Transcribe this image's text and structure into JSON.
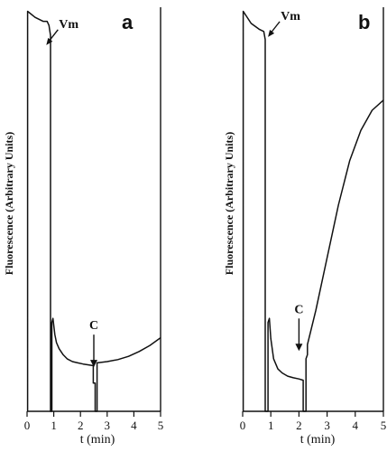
{
  "chart_data": [
    {
      "type": "line",
      "panel_label": "a",
      "xlabel": "t (min)",
      "ylabel": "Fluorescence (Arbitrary Units)",
      "x_ticks": [
        "0",
        "1",
        "2",
        "3",
        "4",
        "5"
      ],
      "xlim": [
        0,
        5
      ],
      "ylim": [
        0,
        100
      ],
      "grid": false,
      "annotations": [
        {
          "text": "Vm",
          "x": 0.72,
          "y": 94
        },
        {
          "text": "C",
          "x": 2.5,
          "y": 6
        }
      ],
      "series": [
        {
          "x": [
            0.02,
            0.02,
            0.3,
            0.6,
            0.75,
            0.82,
            0.88,
            0.88,
            0.93,
            0.93,
            0.97,
            1.04,
            1.1,
            1.2,
            1.35,
            1.5,
            1.7,
            1.9,
            2.1,
            2.3,
            2.48,
            2.48,
            2.55,
            2.55,
            2.62,
            2.62,
            3.0,
            3.4,
            3.8,
            4.2,
            4.6,
            5.0
          ],
          "y": [
            0,
            99,
            97.5,
            96.5,
            96.5,
            95.5,
            93,
            0,
            0,
            22,
            23,
            19,
            17,
            15.5,
            14,
            13,
            12.3,
            12,
            11.7,
            11.5,
            11.3,
            7,
            7,
            0,
            0,
            12,
            12.3,
            12.8,
            13.6,
            14.8,
            16.3,
            18.2
          ]
        }
      ]
    },
    {
      "type": "line",
      "panel_label": "b",
      "xlabel": "t (min)",
      "ylabel": "Fluorescence (Arbitrary Units)",
      "x_ticks": [
        "0",
        "1",
        "2",
        "3",
        "4",
        "5"
      ],
      "xlim": [
        0,
        5
      ],
      "ylim": [
        0,
        100
      ],
      "grid": false,
      "annotations": [
        {
          "text": "Vm",
          "x": 0.9,
          "y": 96
        },
        {
          "text": "C",
          "x": 2.0,
          "y": 10
        }
      ],
      "series": [
        {
          "x": [
            0.02,
            0.02,
            0.3,
            0.6,
            0.75,
            0.8,
            0.8,
            0.9,
            0.9,
            0.95,
            1.0,
            1.1,
            1.25,
            1.4,
            1.6,
            1.8,
            2.0,
            2.15,
            2.15,
            2.25,
            2.25,
            2.3,
            2.3,
            2.6,
            3.0,
            3.4,
            3.8,
            4.2,
            4.6,
            5.0
          ],
          "y": [
            0,
            99,
            96,
            94.5,
            94,
            92,
            0,
            0,
            22,
            23,
            18,
            13,
            10.5,
            9.5,
            8.7,
            8.3,
            8,
            7.7,
            0,
            0,
            13,
            14,
            16.5,
            25,
            38,
            51,
            62,
            69.5,
            74.5,
            77
          ]
        }
      ]
    }
  ]
}
